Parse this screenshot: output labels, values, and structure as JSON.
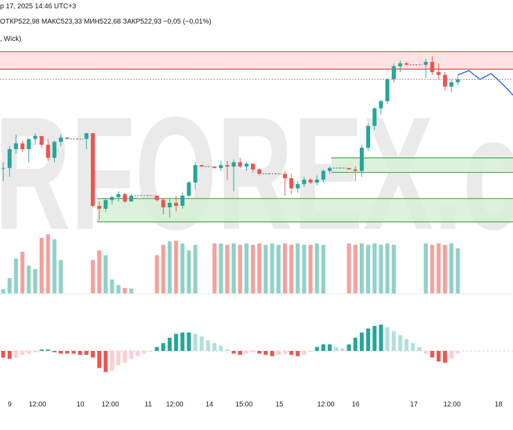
{
  "header": {
    "title": "р 17, 2025 14:46 UTC+3",
    "ohlc": "ОТКР522,98  МАКС523,33  МИН522,68  ЗАКР522,93  −0,05 (−0,01%)",
    "indicator": ", Wick)"
  },
  "watermark": {
    "text": "RFOREX.c"
  },
  "colors": {
    "up": "#26a69a",
    "down": "#ef5350",
    "vol_up": "#8fd1c8",
    "vol_down": "#f3a19e",
    "zone_supply": "#fddede",
    "zone_demand": "#d7f0d5",
    "zone_line_red": "#e53935",
    "zone_line_green": "#43a047",
    "forecast": "#2962ff"
  },
  "chart_data": {
    "type": "candlestick",
    "x_ticks": [
      "9",
      "12:00",
      "10",
      "12:00",
      "11",
      "12:00",
      "14",
      "15:00",
      "15",
      "12:00",
      "16",
      "17",
      "12:00",
      "18"
    ],
    "price_range": [
      511.0,
      524.5
    ],
    "candles": [
      [
        515.9,
        516.3,
        515.0,
        515.9
      ],
      [
        515.9,
        517.4,
        515.3,
        517.2
      ],
      [
        517.2,
        518.2,
        516.9,
        517.6
      ],
      [
        517.6,
        517.8,
        517.0,
        517.2
      ],
      [
        517.2,
        517.9,
        516.3,
        517.9
      ],
      [
        517.9,
        518.3,
        517.5,
        518.1
      ],
      [
        518.1,
        518.1,
        517.3,
        517.5
      ],
      [
        517.5,
        517.9,
        516.4,
        516.6
      ],
      [
        516.6,
        517.8,
        516.3,
        517.7
      ],
      [
        517.7,
        518.2,
        517.4,
        518.0
      ],
      [
        518.0,
        518.0,
        517.9,
        517.9
      ],
      [
        517.9,
        517.9,
        517.9,
        517.9
      ],
      [
        517.9,
        517.9,
        517.9,
        517.9
      ],
      [
        517.9,
        518.3,
        517.2,
        518.3
      ],
      [
        518.3,
        518.3,
        513.2,
        513.3
      ],
      [
        513.3,
        513.6,
        512.3,
        513.1
      ],
      [
        513.1,
        513.8,
        512.9,
        513.7
      ],
      [
        513.7,
        514.0,
        513.4,
        513.9
      ],
      [
        513.9,
        514.3,
        513.6,
        514.1
      ],
      [
        514.1,
        514.2,
        513.5,
        513.6
      ],
      [
        513.6,
        514.1,
        513.6,
        514.0
      ],
      [
        514.0,
        514.0,
        514.0,
        514.0
      ],
      [
        514.0,
        514.0,
        514.0,
        514.0
      ],
      [
        514.0,
        514.0,
        514.0,
        514.0
      ],
      [
        514.0,
        514.0,
        513.6,
        513.7
      ],
      [
        513.7,
        513.8,
        512.7,
        513.2
      ],
      [
        513.2,
        513.8,
        512.5,
        513.5
      ],
      [
        513.5,
        514.0,
        512.9,
        513.3
      ],
      [
        513.3,
        514.2,
        513.1,
        514.0
      ],
      [
        514.0,
        515.0,
        513.9,
        514.9
      ],
      [
        514.9,
        516.3,
        514.4,
        516.1
      ],
      [
        516.1,
        516.1,
        516.0,
        516.0
      ],
      [
        516.0,
        516.0,
        516.0,
        516.0
      ],
      [
        516.0,
        516.0,
        515.9,
        515.9
      ],
      [
        515.9,
        516.4,
        515.7,
        516.1
      ],
      [
        516.1,
        516.4,
        515.1,
        516.0
      ],
      [
        516.0,
        516.5,
        514.3,
        516.3
      ],
      [
        516.3,
        516.6,
        515.9,
        516.0
      ],
      [
        516.0,
        516.3,
        515.7,
        516.2
      ],
      [
        516.2,
        516.2,
        515.6,
        515.8
      ],
      [
        515.8,
        515.9,
        515.4,
        515.5
      ],
      [
        515.5,
        515.5,
        515.5,
        515.5
      ],
      [
        515.5,
        515.5,
        515.5,
        515.5
      ],
      [
        515.5,
        515.5,
        515.5,
        515.5
      ],
      [
        515.5,
        515.7,
        514.0,
        515.2
      ],
      [
        515.2,
        515.5,
        514.1,
        514.5
      ],
      [
        514.5,
        515.0,
        514.2,
        514.8
      ],
      [
        514.8,
        515.3,
        514.6,
        515.1
      ],
      [
        515.1,
        515.2,
        514.8,
        514.9
      ],
      [
        514.9,
        515.4,
        514.7,
        515.1
      ],
      [
        515.1,
        515.8,
        514.9,
        515.7
      ],
      [
        515.7,
        516.0,
        515.5,
        515.9
      ],
      [
        515.9,
        515.9,
        515.9,
        515.9
      ],
      [
        515.9,
        515.9,
        515.9,
        515.9
      ],
      [
        515.9,
        515.9,
        515.8,
        515.8
      ],
      [
        515.8,
        516.0,
        515.0,
        515.7
      ],
      [
        515.7,
        517.5,
        515.3,
        517.3
      ],
      [
        517.3,
        519.0,
        517.1,
        518.8
      ],
      [
        518.8,
        520.1,
        518.5,
        520.0
      ],
      [
        520.0,
        520.6,
        519.6,
        520.5
      ],
      [
        520.5,
        522.1,
        520.3,
        522.0
      ],
      [
        522.0,
        523.1,
        521.8,
        522.9
      ],
      [
        522.9,
        523.3,
        522.5,
        523.1
      ],
      [
        523.1,
        523.2,
        523.0,
        523.0
      ],
      [
        523.0,
        523.0,
        523.0,
        523.0
      ],
      [
        523.0,
        523.0,
        523.0,
        523.0
      ],
      [
        523.0,
        523.4,
        522.1,
        523.2
      ],
      [
        523.2,
        523.6,
        522.3,
        522.5
      ],
      [
        522.5,
        523.1,
        522.0,
        522.3
      ],
      [
        522.3,
        522.5,
        521.2,
        521.5
      ],
      [
        521.5,
        522.0,
        521.1,
        521.8
      ],
      [
        521.8,
        522.2,
        521.6,
        522.0
      ]
    ],
    "volume": [
      6,
      22,
      50,
      60,
      40,
      35,
      80,
      85,
      78,
      48,
      0,
      0,
      0,
      0,
      48,
      62,
      55,
      20,
      12,
      8,
      7,
      0,
      0,
      0,
      55,
      70,
      75,
      76,
      72,
      62,
      70,
      0,
      0,
      72,
      72,
      70,
      72,
      70,
      72,
      70,
      72,
      70,
      72,
      70,
      72,
      70,
      72,
      70,
      70,
      72,
      70,
      0,
      0,
      0,
      72,
      70,
      72,
      70,
      72,
      70,
      72,
      70,
      0,
      0,
      0,
      0,
      72,
      70,
      72,
      70,
      72,
      65
    ],
    "oscillator": [
      -0.5,
      -0.6,
      -0.5,
      -0.3,
      -0.2,
      -0.1,
      0.1,
      0.1,
      -0.1,
      -0.2,
      -0.2,
      -0.2,
      -0.3,
      -0.3,
      -0.5,
      -1.3,
      -1.6,
      -1.5,
      -1.1,
      -0.9,
      -0.6,
      -0.4,
      -0.2,
      0.0,
      0.3,
      0.6,
      1.0,
      1.3,
      1.4,
      1.4,
      1.3,
      1.1,
      0.8,
      0.6,
      0.4,
      0.1,
      -0.2,
      -0.3,
      -0.2,
      -0.1,
      -0.2,
      -0.3,
      -0.4,
      -0.3,
      -0.2,
      -0.3,
      -0.4,
      -0.3,
      0.0,
      0.3,
      0.5,
      0.5,
      0.3,
      0.2,
      0.5,
      1.0,
      1.4,
      1.7,
      1.9,
      2.0,
      1.8,
      1.5,
      1.2,
      0.9,
      0.6,
      0.3,
      -0.2,
      -0.5,
      -0.8,
      -0.9,
      -0.6,
      -0.2
    ],
    "zones": [
      {
        "kind": "supply",
        "top": 523.9,
        "bottom": 522.7
      },
      {
        "kind": "demand",
        "top": 516.6,
        "bottom": 515.6
      },
      {
        "kind": "demand",
        "top": 513.8,
        "bottom": 512.2
      }
    ],
    "forecast_path": [
      522.3,
      522.6,
      522.0,
      522.4,
      521.7,
      520.9
    ]
  }
}
